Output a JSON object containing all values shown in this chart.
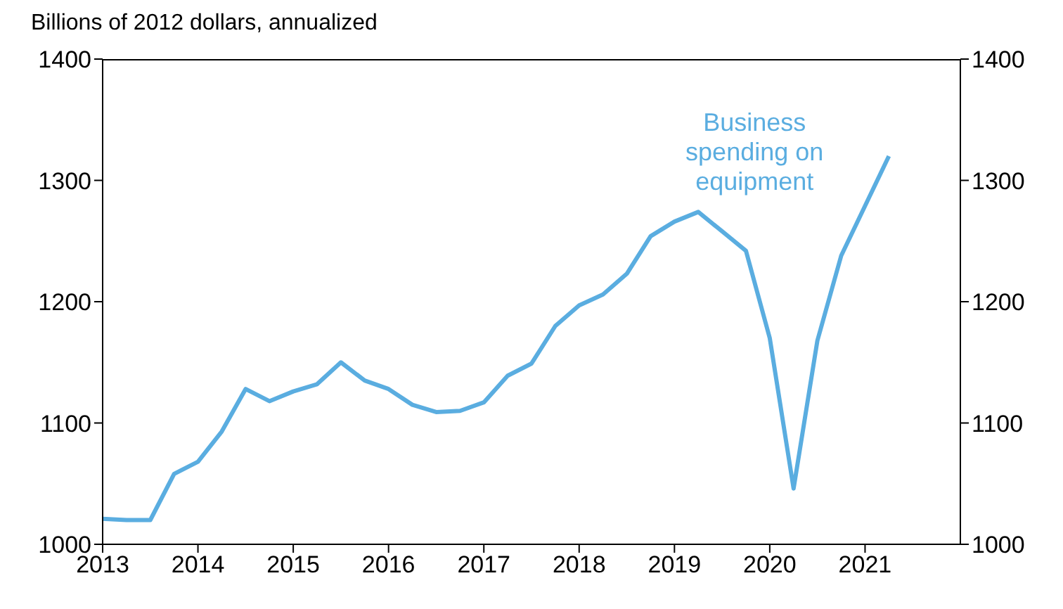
{
  "chart_data": {
    "type": "line",
    "ylabel": "Billions of 2012 dollars, annualized",
    "x": [
      2013,
      2013.25,
      2013.5,
      2013.75,
      2014,
      2014.25,
      2014.5,
      2014.75,
      2015,
      2015.25,
      2015.5,
      2015.75,
      2016,
      2016.25,
      2016.5,
      2016.75,
      2017,
      2017.25,
      2017.5,
      2017.75,
      2018,
      2018.25,
      2018.5,
      2018.75,
      2019,
      2019.25,
      2019.5,
      2019.75,
      2020,
      2020.25,
      2020.5,
      2020.75,
      2021,
      2021.25
    ],
    "series": [
      {
        "name": "Business spending on equipment",
        "color": "#5aade0",
        "values": [
          1021,
          1020,
          1020,
          1058,
          1068,
          1093,
          1128,
          1118,
          1126,
          1132,
          1150,
          1135,
          1128,
          1115,
          1109,
          1110,
          1117,
          1139,
          1149,
          1180,
          1197,
          1206,
          1223,
          1254,
          1266,
          1274,
          1258,
          1242,
          1170,
          1046,
          1168,
          1238,
          1279,
          1320
        ]
      }
    ],
    "xlim": [
      2013,
      2022
    ],
    "xticks": [
      2013,
      2014,
      2015,
      2016,
      2017,
      2018,
      2019,
      2020,
      2021
    ],
    "ylim": [
      1000,
      1400
    ],
    "yticks": [
      1000,
      1100,
      1200,
      1300,
      1400
    ],
    "y2lim": [
      1000,
      1400
    ],
    "y2ticks": [
      1000,
      1100,
      1200,
      1300,
      1400
    ],
    "grid": false,
    "marker": "none",
    "line_style": "solid"
  }
}
